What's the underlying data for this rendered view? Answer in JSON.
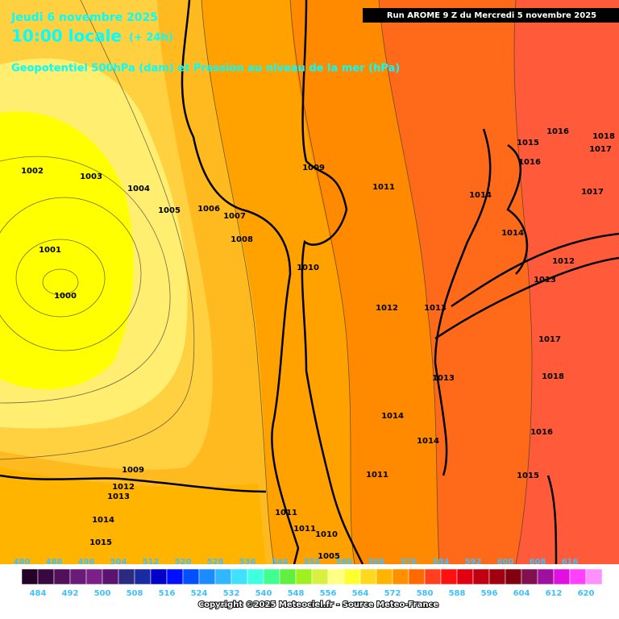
{
  "header": {
    "date": "Jeudi 6 novembre 2025",
    "time": "10:00 locale",
    "offset": "(+ 24h)",
    "subtitle": "Geopotentiel 500hPa (dam) et Pression au niveau de la mer (hPa)",
    "run": "Run AROME 9 Z du Mercredi 5 novembre 2025"
  },
  "isobar_labels": [
    "1002",
    "1003",
    "1004",
    "1005",
    "1006",
    "1007",
    "1008",
    "1009",
    "1011",
    "1010",
    "1012",
    "1013",
    "1014",
    "1014",
    "1016",
    "1015",
    "1016",
    "1018",
    "1017",
    "1017",
    "1012",
    "1013",
    "1017",
    "1018",
    "1013",
    "1014",
    "1014",
    "1016",
    "1015",
    "1011",
    "1001",
    "1000",
    "1009",
    "1012",
    "1013",
    "1014",
    "1015",
    "1011",
    "1011",
    "1010",
    "1005"
  ],
  "colorbar": {
    "labels_top": [
      480,
      488,
      496,
      504,
      512,
      520,
      528,
      536,
      544,
      552,
      560,
      568,
      576,
      584,
      592,
      600,
      608,
      616
    ],
    "labels_bottom": [
      484,
      492,
      500,
      508,
      516,
      524,
      532,
      540,
      548,
      556,
      564,
      572,
      580,
      588,
      596,
      604,
      612,
      620
    ]
  },
  "footer": "Copyright ©2025 Meteociel.fr - Source Meteo-France"
}
